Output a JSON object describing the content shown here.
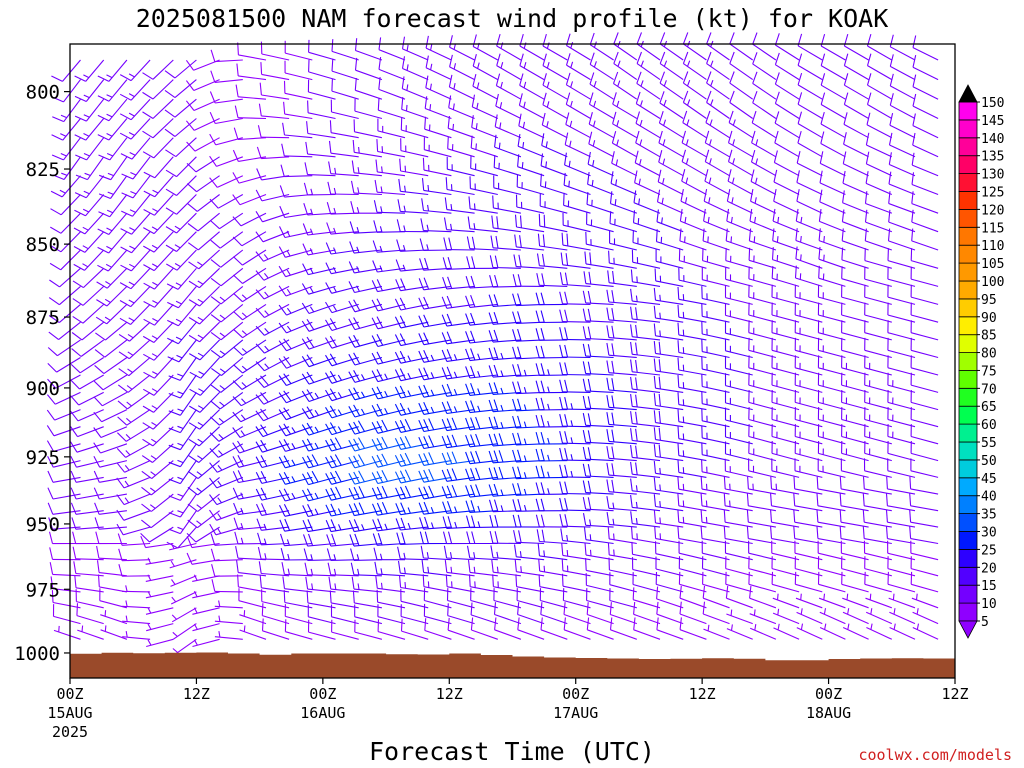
{
  "chart_data": {
    "type": "wind-barb",
    "title": "2025081500 NAM forecast wind profile (kt) for KOAK",
    "xlabel": "Forecast Time (UTC)",
    "ylabel": "",
    "credit": "coolwx.com/models",
    "y_axis": {
      "scale": "log-pressure",
      "ylim": [
        1010,
        785
      ],
      "ticks": [
        "800",
        "825",
        "850",
        "875",
        "900",
        "925",
        "950",
        "975",
        "1000"
      ]
    },
    "x_axis": {
      "xlim_hours": [
        0,
        84
      ],
      "ticks": [
        {
          "h": 0,
          "label": "00Z",
          "date": "15AUG",
          "year": "2025"
        },
        {
          "h": 12,
          "label": "12Z",
          "date": "",
          "year": ""
        },
        {
          "h": 24,
          "label": "00Z",
          "date": "16AUG",
          "year": ""
        },
        {
          "h": 36,
          "label": "12Z",
          "date": "",
          "year": ""
        },
        {
          "h": 48,
          "label": "00Z",
          "date": "17AUG",
          "year": ""
        },
        {
          "h": 60,
          "label": "12Z",
          "date": "",
          "year": ""
        },
        {
          "h": 72,
          "label": "00Z",
          "date": "18AUG",
          "year": ""
        },
        {
          "h": 84,
          "label": "12Z",
          "date": "",
          "year": ""
        }
      ]
    },
    "colorbar": {
      "levels": [
        5,
        10,
        15,
        20,
        25,
        30,
        35,
        40,
        45,
        50,
        55,
        60,
        65,
        70,
        75,
        80,
        85,
        90,
        95,
        100,
        105,
        110,
        115,
        120,
        125,
        130,
        135,
        140,
        145,
        150
      ],
      "colors": [
        "#8f00ff",
        "#7400ff",
        "#5200ff",
        "#2d00ff",
        "#0018ff",
        "#0050ff",
        "#0080ff",
        "#00aaff",
        "#00ccdd",
        "#00e0c0",
        "#00f090",
        "#00ff50",
        "#20ff20",
        "#60ff00",
        "#a0ff00",
        "#e0ff00",
        "#ffee00",
        "#ffcc00",
        "#ffaa00",
        "#ff9900",
        "#ff8800",
        "#ff7700",
        "#ff5500",
        "#ff3300",
        "#ff1133",
        "#ff0066",
        "#ff0099",
        "#ff00cc",
        "#ff00ee",
        "#000000"
      ]
    },
    "levels_hpa": [
      790,
      800,
      810,
      820,
      830,
      840,
      850,
      860,
      870,
      875,
      880,
      890,
      900,
      910,
      920,
      925,
      930,
      940,
      950,
      958,
      966,
      975,
      982,
      990,
      997
    ],
    "series": [
      {
        "h": 0,
        "dir": [
          220,
          215,
          220,
          215,
          225,
          225,
          225,
          230,
          230,
          230,
          235,
          240,
          245,
          250,
          255,
          255,
          260,
          260,
          265,
          270,
          270,
          275,
          280,
          285,
          290
        ],
        "spd": [
          12,
          12,
          13,
          13,
          12,
          12,
          12,
          11,
          11,
          11,
          10,
          10,
          10,
          10,
          10,
          10,
          10,
          10,
          10,
          9,
          9,
          8,
          8,
          8,
          7
        ]
      },
      {
        "h": 6,
        "dir": [
          220,
          220,
          220,
          215,
          215,
          220,
          220,
          225,
          225,
          230,
          230,
          235,
          240,
          245,
          250,
          255,
          260,
          260,
          265,
          270,
          275,
          280,
          285,
          290,
          290
        ],
        "spd": [
          14,
          14,
          14,
          14,
          14,
          14,
          14,
          13,
          13,
          13,
          12,
          12,
          12,
          12,
          12,
          12,
          12,
          12,
          11,
          10,
          9,
          8,
          8,
          7,
          7
        ]
      },
      {
        "h": 12,
        "dir": [
          230,
          230,
          230,
          225,
          225,
          225,
          225,
          220,
          220,
          220,
          220,
          215,
          215,
          215,
          215,
          215,
          215,
          215,
          215,
          260,
          250,
          245,
          240,
          235,
          235
        ],
        "spd": [
          10,
          10,
          10,
          11,
          12,
          13,
          14,
          14,
          14,
          15,
          15,
          15,
          16,
          16,
          16,
          16,
          15,
          14,
          12,
          6,
          6,
          6,
          5,
          5,
          5
        ]
      },
      {
        "h": 18,
        "dir": [
          280,
          275,
          270,
          260,
          250,
          240,
          235,
          235,
          235,
          235,
          235,
          235,
          240,
          245,
          250,
          255,
          260,
          260,
          265,
          270,
          275,
          280,
          285,
          290,
          290
        ],
        "spd": [
          8,
          8,
          8,
          8,
          9,
          10,
          11,
          12,
          13,
          14,
          15,
          15,
          16,
          16,
          17,
          17,
          17,
          16,
          14,
          12,
          10,
          9,
          8,
          7,
          7
        ]
      },
      {
        "h": 24,
        "dir": [
          285,
          285,
          280,
          275,
          270,
          265,
          260,
          255,
          250,
          250,
          250,
          250,
          250,
          250,
          255,
          255,
          255,
          255,
          260,
          265,
          270,
          275,
          280,
          285,
          285
        ],
        "spd": [
          10,
          10,
          10,
          11,
          12,
          13,
          14,
          15,
          16,
          17,
          18,
          20,
          22,
          24,
          26,
          27,
          27,
          26,
          22,
          18,
          15,
          13,
          11,
          10,
          9
        ]
      },
      {
        "h": 30,
        "dir": [
          290,
          290,
          285,
          280,
          275,
          270,
          265,
          260,
          255,
          255,
          255,
          255,
          255,
          255,
          255,
          255,
          255,
          260,
          260,
          265,
          270,
          275,
          280,
          285,
          285
        ],
        "spd": [
          12,
          12,
          12,
          13,
          14,
          15,
          16,
          17,
          18,
          19,
          20,
          22,
          25,
          28,
          31,
          32,
          32,
          30,
          26,
          20,
          16,
          14,
          12,
          10,
          9
        ]
      },
      {
        "h": 36,
        "dir": [
          295,
          295,
          290,
          285,
          280,
          275,
          270,
          265,
          260,
          260,
          260,
          260,
          260,
          260,
          260,
          260,
          260,
          260,
          265,
          270,
          275,
          280,
          285,
          285,
          290
        ],
        "spd": [
          13,
          13,
          13,
          14,
          15,
          16,
          17,
          18,
          19,
          20,
          21,
          23,
          25,
          28,
          30,
          31,
          31,
          29,
          25,
          20,
          16,
          14,
          12,
          10,
          9
        ]
      },
      {
        "h": 42,
        "dir": [
          300,
          300,
          295,
          290,
          285,
          280,
          275,
          270,
          265,
          265,
          265,
          265,
          265,
          265,
          265,
          265,
          265,
          265,
          270,
          270,
          275,
          280,
          285,
          290,
          290
        ],
        "spd": [
          14,
          14,
          14,
          15,
          16,
          17,
          18,
          19,
          20,
          21,
          22,
          23,
          25,
          27,
          28,
          29,
          29,
          27,
          23,
          19,
          15,
          13,
          12,
          10,
          9
        ]
      },
      {
        "h": 48,
        "dir": [
          300,
          300,
          300,
          295,
          290,
          285,
          280,
          275,
          270,
          270,
          270,
          270,
          270,
          270,
          270,
          270,
          270,
          270,
          270,
          275,
          280,
          280,
          285,
          290,
          290
        ],
        "spd": [
          14,
          14,
          14,
          15,
          16,
          17,
          18,
          19,
          20,
          20,
          21,
          22,
          23,
          24,
          25,
          25,
          25,
          23,
          20,
          17,
          14,
          12,
          11,
          10,
          9
        ]
      },
      {
        "h": 54,
        "dir": [
          305,
          305,
          300,
          300,
          295,
          290,
          285,
          280,
          275,
          275,
          275,
          275,
          275,
          275,
          275,
          275,
          275,
          275,
          275,
          280,
          280,
          285,
          285,
          290,
          290
        ],
        "spd": [
          13,
          13,
          13,
          14,
          15,
          16,
          17,
          17,
          18,
          18,
          19,
          19,
          20,
          20,
          20,
          20,
          19,
          18,
          16,
          14,
          12,
          11,
          10,
          9,
          8
        ]
      },
      {
        "h": 60,
        "dir": [
          305,
          305,
          305,
          300,
          300,
          295,
          290,
          285,
          280,
          280,
          280,
          280,
          280,
          280,
          280,
          280,
          280,
          280,
          280,
          280,
          285,
          285,
          290,
          290,
          290
        ],
        "spd": [
          13,
          13,
          13,
          13,
          14,
          14,
          15,
          15,
          16,
          16,
          16,
          17,
          17,
          17,
          17,
          17,
          16,
          15,
          14,
          12,
          11,
          10,
          9,
          8,
          8
        ]
      },
      {
        "h": 66,
        "dir": [
          305,
          305,
          305,
          300,
          300,
          295,
          290,
          285,
          285,
          285,
          285,
          285,
          285,
          285,
          285,
          285,
          285,
          280,
          280,
          280,
          285,
          285,
          290,
          290,
          295
        ],
        "spd": [
          12,
          12,
          12,
          13,
          13,
          13,
          14,
          14,
          14,
          14,
          15,
          15,
          15,
          15,
          15,
          15,
          14,
          13,
          12,
          11,
          10,
          9,
          8,
          7,
          6
        ]
      },
      {
        "h": 72,
        "dir": [
          300,
          300,
          300,
          300,
          295,
          295,
          290,
          290,
          285,
          285,
          285,
          285,
          285,
          285,
          285,
          285,
          285,
          280,
          280,
          280,
          285,
          285,
          290,
          295,
          295
        ],
        "spd": [
          12,
          12,
          12,
          12,
          12,
          12,
          13,
          13,
          13,
          13,
          13,
          13,
          14,
          14,
          14,
          14,
          13,
          12,
          11,
          10,
          9,
          8,
          7,
          7,
          6
        ]
      },
      {
        "h": 78,
        "dir": [
          300,
          300,
          300,
          295,
          295,
          290,
          290,
          285,
          285,
          285,
          285,
          285,
          285,
          285,
          285,
          285,
          285,
          280,
          280,
          280,
          285,
          285,
          290,
          295,
          295
        ],
        "spd": [
          11,
          11,
          11,
          11,
          11,
          12,
          12,
          12,
          12,
          12,
          12,
          12,
          13,
          13,
          13,
          13,
          12,
          12,
          11,
          10,
          9,
          8,
          7,
          6,
          6
        ]
      },
      {
        "h": 84,
        "dir": [
          295,
          295,
          295,
          295,
          290,
          290,
          290,
          285,
          285,
          285,
          285,
          285,
          285,
          285,
          285,
          285,
          285,
          280,
          280,
          280,
          285,
          285,
          290,
          295,
          295
        ],
        "spd": [
          11,
          11,
          11,
          11,
          11,
          11,
          11,
          11,
          11,
          11,
          11,
          11,
          12,
          12,
          12,
          12,
          12,
          11,
          11,
          10,
          9,
          8,
          7,
          6,
          6
        ]
      }
    ],
    "surface_pressure_hpa": [
      {
        "h": 0,
        "p": 1000.3
      },
      {
        "h": 3,
        "p": 999.9
      },
      {
        "h": 6,
        "p": 1000.1
      },
      {
        "h": 9,
        "p": 999.9
      },
      {
        "h": 12,
        "p": 999.8
      },
      {
        "h": 15,
        "p": 1000.2
      },
      {
        "h": 18,
        "p": 1000.7
      },
      {
        "h": 21,
        "p": 1000.2
      },
      {
        "h": 24,
        "p": 1000.2
      },
      {
        "h": 27,
        "p": 1000.2
      },
      {
        "h": 30,
        "p": 1000.5
      },
      {
        "h": 33,
        "p": 1000.6
      },
      {
        "h": 36,
        "p": 1000.2
      },
      {
        "h": 39,
        "p": 1000.8
      },
      {
        "h": 42,
        "p": 1001.4
      },
      {
        "h": 45,
        "p": 1001.8
      },
      {
        "h": 48,
        "p": 1002.0
      },
      {
        "h": 51,
        "p": 1002.2
      },
      {
        "h": 54,
        "p": 1002.4
      },
      {
        "h": 57,
        "p": 1002.3
      },
      {
        "h": 60,
        "p": 1002.1
      },
      {
        "h": 63,
        "p": 1002.3
      },
      {
        "h": 66,
        "p": 1002.9
      },
      {
        "h": 69,
        "p": 1002.9
      },
      {
        "h": 72,
        "p": 1002.4
      },
      {
        "h": 75,
        "p": 1002.2
      },
      {
        "h": 78,
        "p": 1002.1
      },
      {
        "h": 81,
        "p": 1002.2
      },
      {
        "h": 84,
        "p": 1002.2
      }
    ],
    "terrain_color": "#9a4a2a",
    "grid": false
  }
}
